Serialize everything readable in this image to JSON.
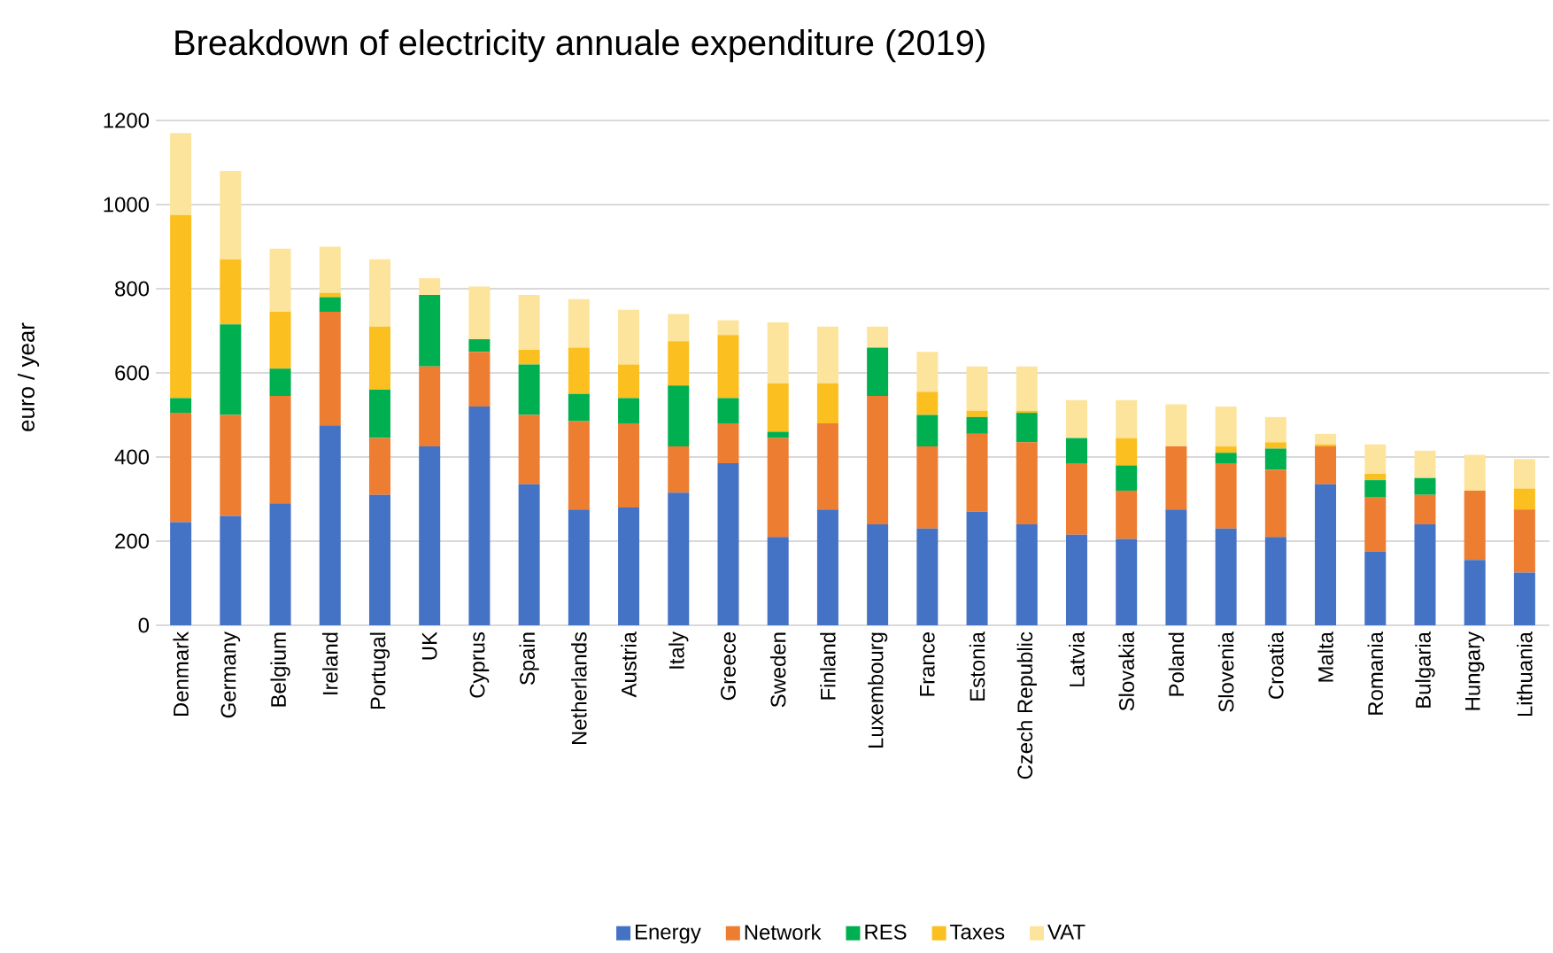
{
  "chart_data": {
    "type": "bar",
    "stacked": true,
    "title": "Breakdown of electricity annuale expenditure (2019)",
    "ylabel": "euro / year",
    "categories": [
      "Denmark",
      "Germany",
      "Belgium",
      "Ireland",
      "Portugal",
      "UK",
      "Cyprus",
      "Spain",
      "Netherlands",
      "Austria",
      "Italy",
      "Greece",
      "Sweden",
      "Finland",
      "Luxembourg",
      "France",
      "Estonia",
      "Czech Republic",
      "Latvia",
      "Slovakia",
      "Poland",
      "Slovenia",
      "Croatia",
      "Malta",
      "Romania",
      "Bulgaria",
      "Hungary",
      "Lithuania"
    ],
    "series": [
      {
        "name": "Energy",
        "color": "#4472c4",
        "values": [
          245,
          260,
          290,
          475,
          310,
          425,
          520,
          335,
          275,
          280,
          315,
          385,
          210,
          275,
          240,
          230,
          270,
          240,
          215,
          205,
          275,
          230,
          210,
          335,
          175,
          240,
          155,
          125
        ]
      },
      {
        "name": "Network",
        "color": "#ed7d31",
        "values": [
          260,
          240,
          255,
          270,
          135,
          190,
          130,
          165,
          210,
          200,
          110,
          95,
          235,
          205,
          305,
          195,
          185,
          195,
          170,
          115,
          150,
          155,
          160,
          90,
          130,
          70,
          165,
          150
        ]
      },
      {
        "name": "RES",
        "color": "#00b050",
        "values": [
          35,
          215,
          65,
          35,
          115,
          170,
          30,
          120,
          65,
          60,
          145,
          60,
          15,
          0,
          115,
          75,
          40,
          70,
          60,
          60,
          0,
          25,
          50,
          0,
          40,
          40,
          0,
          0
        ]
      },
      {
        "name": "Taxes",
        "color": "#fbbf1f",
        "values": [
          435,
          155,
          135,
          10,
          150,
          0,
          0,
          35,
          110,
          80,
          105,
          150,
          115,
          95,
          0,
          55,
          15,
          5,
          0,
          65,
          0,
          15,
          15,
          5,
          15,
          0,
          0,
          50
        ]
      },
      {
        "name": "VAT",
        "color": "#fde49c",
        "values": [
          195,
          210,
          150,
          110,
          160,
          40,
          125,
          130,
          115,
          130,
          65,
          35,
          145,
          135,
          50,
          95,
          105,
          105,
          90,
          90,
          100,
          95,
          60,
          25,
          70,
          65,
          85,
          70
        ]
      }
    ],
    "ylim": [
      0,
      1200
    ],
    "yticks": [
      0,
      200,
      400,
      600,
      800,
      1000,
      1200
    ],
    "grid": "y",
    "legend": "bottom"
  }
}
